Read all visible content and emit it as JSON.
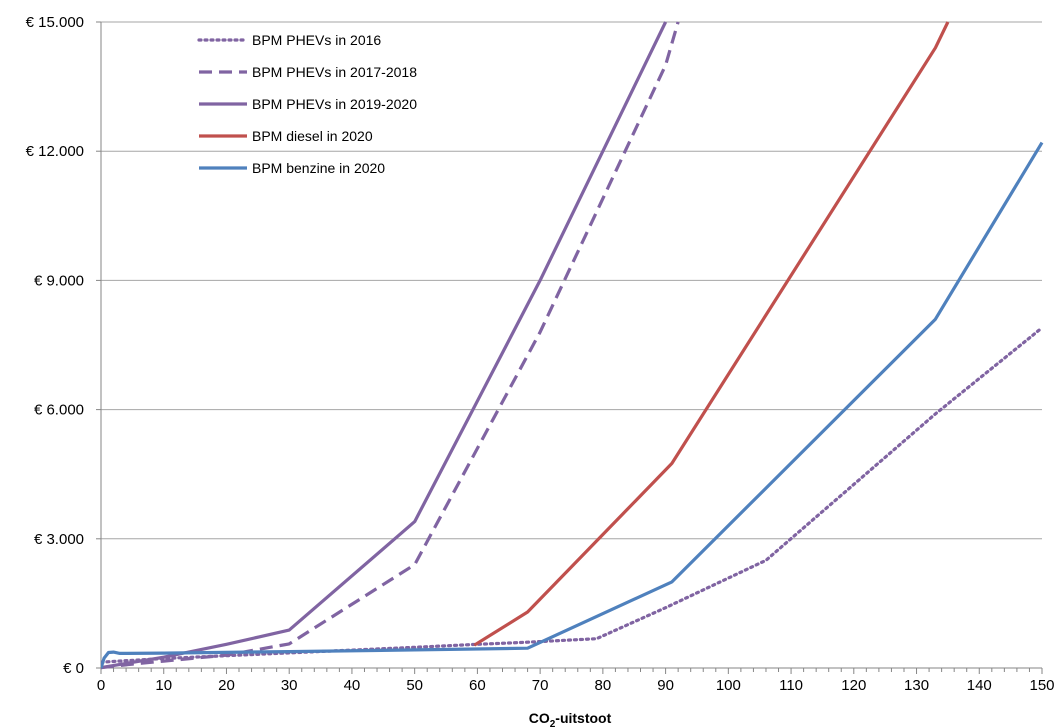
{
  "chart_data": {
    "type": "line",
    "title": "",
    "xlabel_main": "CO",
    "xlabel_sub": "2",
    "xlabel_rest": "-uitstoot",
    "xlim": [
      0,
      150
    ],
    "ylim": [
      0,
      15000
    ],
    "x_ticks": [
      "0",
      "10",
      "20",
      "30",
      "40",
      "50",
      "60",
      "70",
      "80",
      "90",
      "100",
      "110",
      "120",
      "130",
      "140",
      "150"
    ],
    "y_ticks": [
      "€ 0",
      "€ 3.000",
      "€ 6.000",
      "€ 9.000",
      "€ 12.000",
      "€ 15.000"
    ],
    "grid": true,
    "legend_position": "top-left",
    "series": [
      {
        "name": "BPM PHEVs in 2016",
        "color": "#8064a2",
        "style": "dotted",
        "points": [
          [
            0,
            130
          ],
          [
            1,
            145
          ],
          [
            10,
            220
          ],
          [
            30,
            350
          ],
          [
            50,
            480
          ],
          [
            60,
            550
          ],
          [
            68,
            600
          ],
          [
            79,
            680
          ],
          [
            90,
            1400
          ],
          [
            106,
            2500
          ],
          [
            133,
            5900
          ],
          [
            150,
            7900
          ]
        ]
      },
      {
        "name": "BPM PHEVs in 2017-2018",
        "color": "#8064a2",
        "style": "dashed",
        "points": [
          [
            0,
            10
          ],
          [
            5,
            90
          ],
          [
            10,
            160
          ],
          [
            20,
            300
          ],
          [
            30,
            560
          ],
          [
            50,
            2400
          ],
          [
            70,
            7800
          ],
          [
            90,
            14000
          ],
          [
            92,
            15000
          ]
        ]
      },
      {
        "name": "BPM PHEVs in 2019-2020",
        "color": "#8064a2",
        "style": "solid",
        "points": [
          [
            0,
            10
          ],
          [
            10,
            250
          ],
          [
            20,
            550
          ],
          [
            30,
            880
          ],
          [
            50,
            3400
          ],
          [
            70,
            9000
          ],
          [
            90,
            15000
          ]
        ]
      },
      {
        "name": "BPM diesel in 2020",
        "color": "#c0504d",
        "style": "solid",
        "points": [
          [
            59.5,
            530
          ],
          [
            68,
            1300
          ],
          [
            91,
            4750
          ],
          [
            133,
            14400
          ],
          [
            135,
            15000
          ]
        ]
      },
      {
        "name": "BPM benzine in 2020",
        "color": "#4f81bd",
        "style": "solid",
        "points": [
          [
            0,
            0
          ],
          [
            0.5,
            230
          ],
          [
            1.2,
            360
          ],
          [
            2,
            370
          ],
          [
            3,
            340
          ],
          [
            10,
            345
          ],
          [
            30,
            380
          ],
          [
            50,
            420
          ],
          [
            68,
            460
          ],
          [
            91,
            2000
          ],
          [
            133,
            8100
          ],
          [
            150,
            12200
          ]
        ]
      }
    ]
  }
}
